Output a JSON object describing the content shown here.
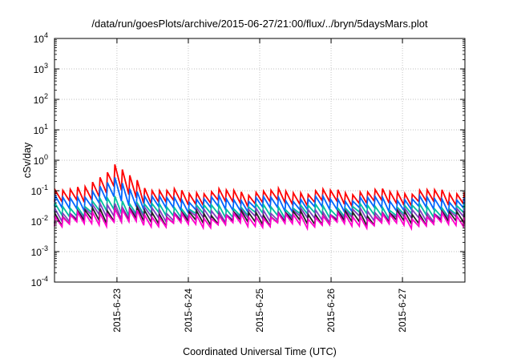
{
  "chart_data": {
    "type": "line",
    "title": "/data/run/goesPlots/archive/2015-06-27/21:00/flux/../bryn/5daysMars.plot",
    "xlabel": "Coordinated Universal Time (UTC)",
    "ylabel": "cSv/day",
    "y_scale": "log",
    "ylim": [
      0.0001,
      10000
    ],
    "y_ticks": [
      {
        "value": 0.0001,
        "base": "10",
        "exp": "-4"
      },
      {
        "value": 0.001,
        "base": "10",
        "exp": "-3"
      },
      {
        "value": 0.01,
        "base": "10",
        "exp": "-2"
      },
      {
        "value": 0.1,
        "base": "10",
        "exp": "-1"
      },
      {
        "value": 1,
        "base": "10",
        "exp": "0"
      },
      {
        "value": 10,
        "base": "10",
        "exp": "1"
      },
      {
        "value": 100,
        "base": "10",
        "exp": "2"
      },
      {
        "value": 1000,
        "base": "10",
        "exp": "3"
      },
      {
        "value": 10000,
        "base": "10",
        "exp": "4"
      }
    ],
    "xlim": [
      "2015-06-22T03:00",
      "2015-06-27T21:00"
    ],
    "x_ticks": [
      {
        "date": "2015-06-23T00:00",
        "label": "2015-6-23"
      },
      {
        "date": "2015-06-24T00:00",
        "label": "2015-6-24"
      },
      {
        "date": "2015-06-25T00:00",
        "label": "2015-6-25"
      },
      {
        "date": "2015-06-26T00:00",
        "label": "2015-6-26"
      },
      {
        "date": "2015-06-27T00:00",
        "label": "2015-6-27"
      }
    ],
    "grid": true,
    "series_pattern": "sawtooth peaks roughly every 2.5 hours",
    "series": [
      {
        "color": "#ff0000",
        "peak_level": 0.095,
        "trough_level": 0.04,
        "spike": {
          "date": "2015-06-22T23:00",
          "value": 0.6
        }
      },
      {
        "color": "#0066ff",
        "peak_level": 0.055,
        "trough_level": 0.025,
        "spike": {
          "date": "2015-06-22T23:00",
          "value": 0.22
        }
      },
      {
        "color": "#00bfa0",
        "peak_level": 0.03,
        "trough_level": 0.016,
        "spike": {
          "date": "2015-06-22T23:00",
          "value": 0.06
        }
      },
      {
        "color": "#8040c0",
        "peak_level": 0.022,
        "trough_level": 0.012,
        "spike": {
          "date": "2015-06-22T23:00",
          "value": 0.04
        }
      },
      {
        "color": "#222222",
        "peak_level": 0.018,
        "trough_level": 0.009,
        "spike": {
          "date": "2015-06-22T23:00",
          "value": 0.03
        }
      },
      {
        "color": "#ff00cc",
        "peak_level": 0.015,
        "trough_level": 0.0075,
        "spike": {
          "date": "2015-06-22T23:00",
          "value": 0.025
        }
      }
    ]
  }
}
